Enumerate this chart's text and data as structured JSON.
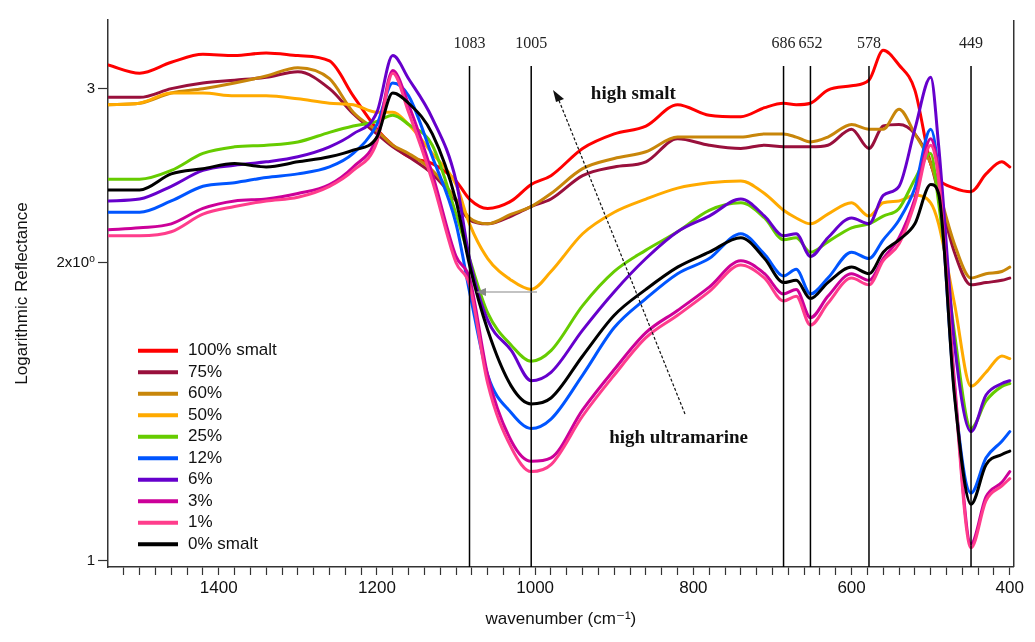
{
  "chart_data": {
    "type": "line",
    "xlabel": "wavenumber (cm⁻¹)",
    "ylabel": "Logarithmic Reflectance",
    "log": "y",
    "grid": false,
    "legend": "bottom left",
    "marker": "none",
    "line_style": "solid",
    "xlim": [
      1540,
      395
    ],
    "ylim": [
      0.985,
      3.52
    ],
    "xticks": [
      {
        "value": 1520,
        "label": null
      },
      {
        "value": 1500,
        "label": null
      },
      {
        "value": 1480,
        "label": null
      },
      {
        "value": 1460,
        "label": null
      },
      {
        "value": 1440,
        "label": null
      },
      {
        "value": 1420,
        "label": null
      },
      1400,
      {
        "value": 1380,
        "label": null
      },
      {
        "value": 1360,
        "label": null
      },
      {
        "value": 1340,
        "label": null
      },
      {
        "value": 1320,
        "label": null
      },
      {
        "value": 1300,
        "label": null
      },
      {
        "value": 1280,
        "label": null
      },
      {
        "value": 1260,
        "label": null
      },
      {
        "value": 1240,
        "label": null
      },
      {
        "value": 1220,
        "label": null
      },
      1200,
      {
        "value": 1180,
        "label": null
      },
      {
        "value": 1160,
        "label": null
      },
      {
        "value": 1140,
        "label": null
      },
      {
        "value": 1120,
        "label": null
      },
      {
        "value": 1100,
        "label": null
      },
      {
        "value": 1080,
        "label": null
      },
      {
        "value": 1060,
        "label": null
      },
      {
        "value": 1040,
        "label": null
      },
      {
        "value": 1020,
        "label": null
      },
      1000,
      {
        "value": 980,
        "label": null
      },
      {
        "value": 960,
        "label": null
      },
      {
        "value": 940,
        "label": null
      },
      {
        "value": 920,
        "label": null
      },
      {
        "value": 900,
        "label": null
      },
      {
        "value": 880,
        "label": null
      },
      {
        "value": 860,
        "label": null
      },
      {
        "value": 840,
        "label": null
      },
      {
        "value": 820,
        "label": null
      },
      800,
      {
        "value": 780,
        "label": null
      },
      {
        "value": 760,
        "label": null
      },
      {
        "value": 740,
        "label": null
      },
      {
        "value": 720,
        "label": null
      },
      {
        "value": 700,
        "label": null
      },
      {
        "value": 680,
        "label": null
      },
      {
        "value": 660,
        "label": null
      },
      {
        "value": 640,
        "label": null
      },
      {
        "value": 620,
        "label": null
      },
      600,
      {
        "value": 580,
        "label": null
      },
      {
        "value": 560,
        "label": null
      },
      {
        "value": 540,
        "label": null
      },
      {
        "value": 520,
        "label": null
      },
      {
        "value": 500,
        "label": null
      },
      {
        "value": 480,
        "label": null
      },
      {
        "value": 460,
        "label": null
      },
      {
        "value": 440,
        "label": null
      },
      {
        "value": 420,
        "label": null
      },
      400
    ],
    "yticks": [
      1,
      {
        "value": 2,
        "label": "2x10⁰"
      },
      3
    ],
    "x": [
      1540,
      1500,
      1460,
      1420,
      1380,
      1340,
      1300,
      1260,
      1230,
      1200,
      1180,
      1160,
      1130,
      1100,
      1083,
      1060,
      1030,
      1005,
      980,
      940,
      900,
      860,
      820,
      780,
      740,
      710,
      686,
      670,
      652,
      630,
      600,
      578,
      560,
      540,
      520,
      500,
      490,
      470,
      449,
      430,
      410,
      400
    ],
    "series": [
      {
        "name": "100% smalt",
        "color": "#ff0000",
        "values": [
          3.17,
          3.11,
          3.19,
          3.25,
          3.24,
          3.26,
          3.24,
          3.2,
          2.95,
          2.73,
          2.63,
          2.56,
          2.52,
          2.42,
          2.32,
          2.27,
          2.31,
          2.4,
          2.45,
          2.61,
          2.7,
          2.75,
          2.89,
          2.82,
          2.81,
          2.87,
          2.9,
          2.89,
          2.9,
          2.99,
          3.02,
          3.06,
          3.28,
          3.17,
          2.99,
          2.52,
          2.43,
          2.38,
          2.36,
          2.46,
          2.53,
          2.5
        ]
      },
      {
        "name": "75%",
        "color": "#99103c",
        "values": [
          2.94,
          2.94,
          3.0,
          3.04,
          3.06,
          3.08,
          3.12,
          3.0,
          2.83,
          2.7,
          2.62,
          2.56,
          2.46,
          2.31,
          2.21,
          2.19,
          2.23,
          2.28,
          2.32,
          2.45,
          2.5,
          2.53,
          2.67,
          2.63,
          2.61,
          2.63,
          2.62,
          2.62,
          2.62,
          2.63,
          2.73,
          2.61,
          2.75,
          2.76,
          2.7,
          2.52,
          2.35,
          2.05,
          1.9,
          1.91,
          1.92,
          1.93
        ]
      },
      {
        "name": "60%",
        "color": "#c8860a",
        "values": [
          2.89,
          2.9,
          2.97,
          3.0,
          3.04,
          3.09,
          3.15,
          3.07,
          2.84,
          2.72,
          2.63,
          2.58,
          2.48,
          2.32,
          2.22,
          2.19,
          2.24,
          2.28,
          2.35,
          2.49,
          2.55,
          2.59,
          2.68,
          2.68,
          2.68,
          2.7,
          2.7,
          2.68,
          2.65,
          2.68,
          2.76,
          2.73,
          2.73,
          2.86,
          2.7,
          2.52,
          2.37,
          2.09,
          1.93,
          1.95,
          1.96,
          1.98
        ]
      },
      {
        "name": "50%",
        "color": "#ffaa00",
        "values": [
          2.89,
          2.9,
          2.97,
          2.97,
          2.95,
          2.95,
          2.93,
          2.9,
          2.89,
          2.84,
          2.84,
          2.76,
          2.58,
          2.4,
          2.19,
          2.02,
          1.92,
          1.88,
          1.96,
          2.14,
          2.25,
          2.32,
          2.38,
          2.41,
          2.42,
          2.35,
          2.26,
          2.22,
          2.19,
          2.24,
          2.3,
          2.23,
          2.3,
          2.31,
          2.34,
          2.3,
          2.19,
          1.82,
          1.5,
          1.55,
          1.61,
          1.6
        ]
      },
      {
        "name": "25%",
        "color": "#66cc00",
        "values": [
          2.43,
          2.43,
          2.48,
          2.58,
          2.62,
          2.63,
          2.65,
          2.71,
          2.75,
          2.78,
          2.82,
          2.76,
          2.63,
          2.24,
          2.02,
          1.78,
          1.65,
          1.59,
          1.63,
          1.81,
          1.96,
          2.06,
          2.15,
          2.26,
          2.3,
          2.22,
          2.11,
          2.12,
          2.05,
          2.1,
          2.17,
          2.19,
          2.23,
          2.27,
          2.43,
          2.58,
          2.3,
          1.7,
          1.36,
          1.45,
          1.5,
          1.51
        ]
      },
      {
        "name": "12%",
        "color": "#0055ff",
        "values": [
          2.25,
          2.25,
          2.31,
          2.39,
          2.41,
          2.44,
          2.46,
          2.5,
          2.58,
          2.76,
          3.04,
          2.95,
          2.56,
          2.19,
          1.87,
          1.54,
          1.41,
          1.36,
          1.39,
          1.54,
          1.72,
          1.84,
          1.95,
          2.02,
          2.14,
          2.04,
          1.94,
          1.97,
          1.86,
          1.93,
          2.05,
          2.02,
          2.11,
          2.21,
          2.38,
          2.73,
          2.46,
          1.48,
          1.17,
          1.27,
          1.32,
          1.35
        ]
      },
      {
        "name": "6%",
        "color": "#6600cc",
        "values": [
          2.31,
          2.32,
          2.39,
          2.48,
          2.51,
          2.53,
          2.56,
          2.62,
          2.7,
          2.84,
          3.24,
          3.07,
          2.8,
          2.42,
          2.02,
          1.75,
          1.63,
          1.52,
          1.55,
          1.71,
          1.87,
          2.02,
          2.15,
          2.23,
          2.32,
          2.23,
          2.13,
          2.14,
          2.03,
          2.12,
          2.22,
          2.19,
          2.34,
          2.39,
          2.73,
          3.08,
          2.63,
          1.66,
          1.35,
          1.47,
          1.51,
          1.52
        ]
      },
      {
        "name": "3%",
        "color": "#cc0099",
        "values": [
          2.16,
          2.17,
          2.19,
          2.27,
          2.31,
          2.32,
          2.35,
          2.4,
          2.5,
          2.68,
          3.13,
          2.89,
          2.46,
          2.03,
          1.93,
          1.54,
          1.32,
          1.26,
          1.27,
          1.42,
          1.56,
          1.7,
          1.79,
          1.89,
          2.01,
          1.95,
          1.86,
          1.88,
          1.76,
          1.85,
          1.95,
          1.92,
          2.02,
          2.12,
          2.32,
          2.67,
          2.46,
          1.52,
          1.04,
          1.16,
          1.2,
          1.23
        ]
      },
      {
        "name": "1%",
        "color": "#ff3d8c",
        "values": [
          2.13,
          2.13,
          2.15,
          2.24,
          2.28,
          2.31,
          2.33,
          2.39,
          2.48,
          2.65,
          3.11,
          2.84,
          2.42,
          2.0,
          1.9,
          1.51,
          1.3,
          1.23,
          1.25,
          1.4,
          1.54,
          1.68,
          1.77,
          1.87,
          1.99,
          1.93,
          1.83,
          1.85,
          1.73,
          1.82,
          1.93,
          1.9,
          2.01,
          2.09,
          2.3,
          2.63,
          2.43,
          1.5,
          1.03,
          1.15,
          1.19,
          1.21
        ]
      },
      {
        "name": "0% smalt",
        "color": "#000000",
        "values": [
          2.37,
          2.37,
          2.46,
          2.49,
          2.52,
          2.5,
          2.53,
          2.56,
          2.6,
          2.68,
          2.97,
          2.9,
          2.7,
          2.31,
          1.99,
          1.71,
          1.5,
          1.44,
          1.46,
          1.61,
          1.77,
          1.88,
          1.98,
          2.05,
          2.12,
          2.02,
          1.91,
          1.92,
          1.84,
          1.91,
          1.98,
          1.95,
          2.05,
          2.11,
          2.19,
          2.4,
          2.35,
          1.47,
          1.14,
          1.25,
          1.28,
          1.29
        ]
      }
    ],
    "ref_lines": [
      {
        "axis": "x",
        "value": 1083,
        "label": "1083"
      },
      {
        "axis": "x",
        "value": 1005,
        "label": "1005"
      },
      {
        "axis": "x",
        "value": 686,
        "label": "686"
      },
      {
        "axis": "x",
        "value": 652,
        "label": "652"
      },
      {
        "axis": "x",
        "value": 578,
        "label": "578"
      },
      {
        "axis": "x",
        "value": 449,
        "label": "449"
      }
    ],
    "annotations": [
      "high smalt",
      "high ultramarine"
    ]
  }
}
